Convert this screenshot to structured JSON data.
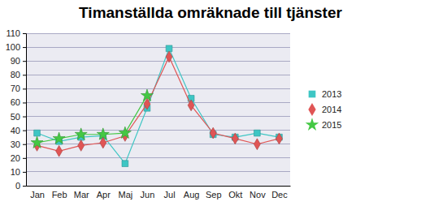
{
  "chart_data": {
    "type": "line",
    "title": "Timanställda omräknade till tjänster",
    "categories": [
      "Jan",
      "Feb",
      "Mar",
      "Apr",
      "Maj",
      "Jun",
      "Jul",
      "Aug",
      "Sep",
      "Okt",
      "Nov",
      "Dec"
    ],
    "series": [
      {
        "name": "2013",
        "color": "#3ec6c4",
        "marker": "square",
        "values": [
          38,
          32,
          35,
          36,
          16,
          56,
          99,
          63,
          37,
          35,
          38,
          35
        ]
      },
      {
        "name": "2014",
        "color": "#e05555",
        "marker": "diamond",
        "values": [
          29,
          25,
          29,
          31,
          36,
          59,
          93,
          58,
          38,
          34,
          30,
          34
        ]
      },
      {
        "name": "2015",
        "color": "#44c844",
        "marker": "star",
        "values": [
          31,
          34,
          37,
          37,
          38,
          65,
          null,
          null,
          null,
          null,
          null,
          null
        ]
      }
    ],
    "ylim": [
      0,
      110
    ],
    "yticks": [
      0,
      10,
      20,
      30,
      40,
      50,
      60,
      70,
      80,
      90,
      100,
      110
    ],
    "grid": true,
    "legend": "right"
  }
}
